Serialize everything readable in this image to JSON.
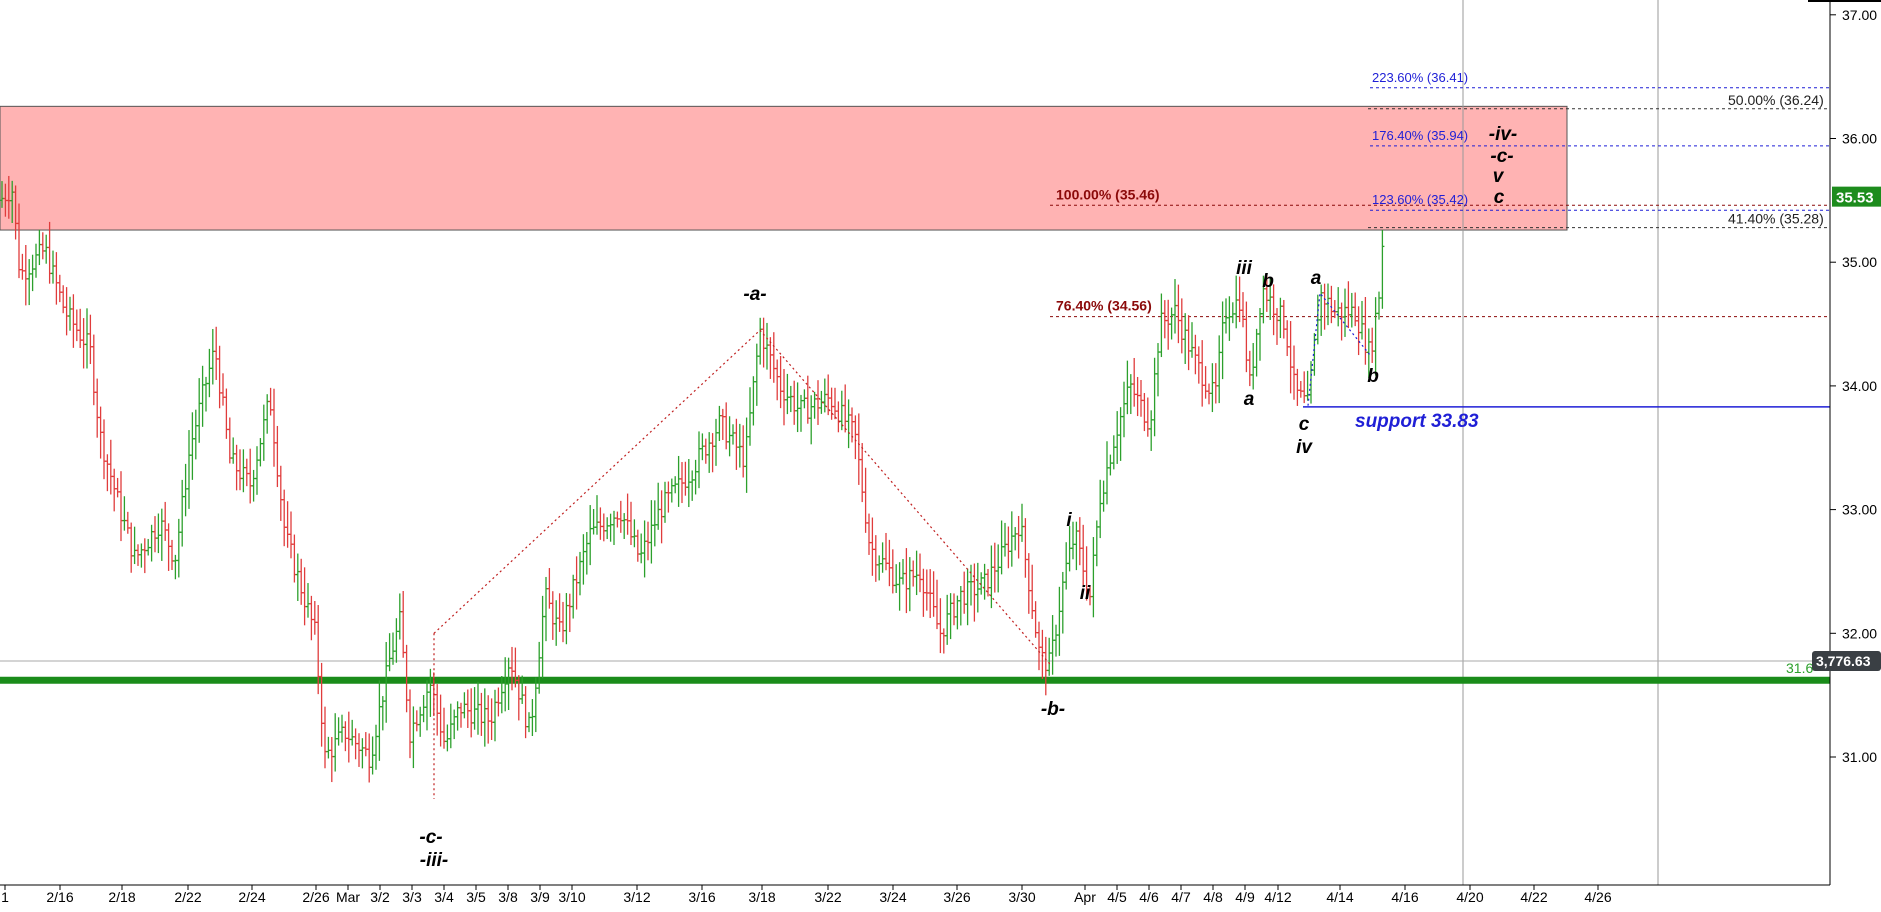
{
  "chart_data": {
    "type": "ohlc_bar",
    "title": "",
    "ylim": [
      29.6,
      37.2
    ],
    "y_ticks": [
      "31.00",
      "32.00",
      "33.00",
      "34.00",
      "35.00",
      "36.00",
      "37.00"
    ],
    "x_ticks": [
      "1",
      "2/16",
      "2/18",
      "2/22",
      "2/24",
      "2/26",
      "Mar",
      "3/2",
      "3/3",
      "3/4",
      "3/5",
      "3/8",
      "3/9",
      "3/10",
      "3/12",
      "3/16",
      "3/18",
      "3/22",
      "3/24",
      "3/26",
      "3/30",
      "Apr",
      "4/5",
      "4/6",
      "4/7",
      "4/8",
      "4/9",
      "4/12",
      "4/14",
      "4/16",
      "4/20",
      "4/22",
      "4/26"
    ],
    "last_price": "35.53",
    "index_value": "3,776.63",
    "green_level_label": "31.6",
    "resistance_zone": {
      "low": 35.26,
      "high": 36.26,
      "color": "#ffb3b3"
    },
    "support_line": {
      "value": 33.83,
      "label": "support 33.83"
    },
    "fib_levels": [
      {
        "label": "223.60% (36.41)",
        "value": 36.41,
        "color": "#1f1fd6",
        "style": "fib-blue"
      },
      {
        "label": "50.00% (36.24)",
        "value": 36.24,
        "color": "#333333",
        "style": "fib-black"
      },
      {
        "label": "176.40% (35.94)",
        "value": 35.94,
        "color": "#1f1fd6",
        "style": "fib-blue"
      },
      {
        "label": "100.00% (35.46)",
        "value": 35.46,
        "color": "#8b0a0a",
        "style": "fib-red"
      },
      {
        "label": "123.60% (35.42)",
        "value": 35.42,
        "color": "#1f1fd6",
        "style": "fib-blue"
      },
      {
        "label": "41.40% (35.28)",
        "value": 35.28,
        "color": "#333333",
        "style": "fib-black"
      },
      {
        "label": "76.40% (34.56)",
        "value": 34.56,
        "color": "#8b0a0a",
        "style": "fib-red"
      }
    ],
    "wave_labels": [
      "-a-",
      "-b-",
      "-c-",
      "-iii-",
      "i",
      "ii",
      "iii",
      "a",
      "b",
      "c",
      "iv",
      "a",
      "b",
      "-iv-",
      "-c-",
      "v",
      "c"
    ],
    "colors": {
      "up": "#2ca02c",
      "down": "#e03c3c",
      "green_line": "#1a8c1a",
      "support": "#1f1fd6"
    }
  }
}
